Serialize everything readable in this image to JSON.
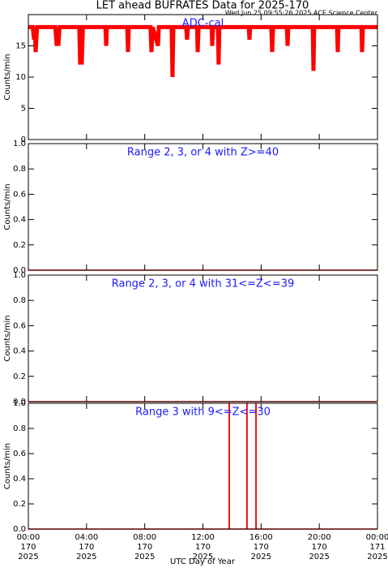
{
  "title": "LET ahead BUFRATES Data for 2025-170",
  "timestamp": "Wed Jun 25 09:55:26 2025 ACE Science Center",
  "xlabel": "UTC Day of Year",
  "chart_data": [
    {
      "type": "line",
      "title": "ADC-cal",
      "ylabel": "Counts/min",
      "color": "#ff0000",
      "xlim": [
        0,
        24
      ],
      "ylim": [
        0,
        20
      ],
      "yticks": [
        0,
        5,
        10,
        15
      ],
      "series": [
        {
          "color": "#ff0000",
          "x": [
            0,
            0.3,
            0.39,
            0.45,
            0.5,
            0.6,
            1.85,
            1.95,
            2.0,
            2.06,
            2.15,
            3.5,
            3.56,
            3.62,
            3.67,
            3.75,
            5.3,
            5.35,
            5.4,
            6.8,
            6.85,
            6.9,
            8.4,
            8.46,
            8.55,
            8.91,
            8.97,
            9.85,
            9.91,
            9.97,
            10.85,
            10.91,
            10.97,
            11.6,
            11.64,
            11.7,
            12.6,
            12.64,
            12.7,
            13.03,
            13.08,
            13.13,
            15.15,
            15.2,
            15.25,
            16.7,
            16.76,
            16.82,
            17.77,
            17.82,
            17.87,
            19.55,
            19.6,
            19.65,
            21.22,
            21.27,
            21.32,
            22.9,
            22.94,
            23.0,
            24
          ],
          "values": [
            18,
            18,
            16,
            18,
            14,
            18,
            18,
            15,
            18,
            15,
            18,
            18,
            12,
            18,
            12,
            18,
            18,
            15,
            18,
            18,
            14,
            18,
            18,
            14,
            18,
            15,
            18,
            18,
            10,
            18,
            18,
            16,
            18,
            18,
            14,
            18,
            18,
            15,
            18,
            18,
            12,
            18,
            18,
            16,
            18,
            18,
            14,
            18,
            18,
            15,
            18,
            18,
            11,
            18,
            18,
            14,
            18,
            18,
            14,
            18,
            18
          ]
        }
      ]
    },
    {
      "type": "line",
      "title": "Range 2, 3, or 4 with Z>=40",
      "ylabel": "Counts/min",
      "xlim": [
        0,
        24
      ],
      "ylim": [
        0,
        1
      ],
      "yticks": [
        {
          "value": 0,
          "label": "0.0"
        },
        {
          "value": 0.2,
          "label": "0.2"
        },
        {
          "value": 0.4,
          "label": "0.4"
        },
        {
          "value": 0.6,
          "label": "0.6"
        },
        {
          "value": 0.8,
          "label": "0.8"
        },
        {
          "value": 1,
          "label": "1.0"
        }
      ],
      "series": [
        {
          "color": "#ff0000",
          "x": [
            0,
            24
          ],
          "values": [
            0,
            0
          ]
        }
      ]
    },
    {
      "type": "line",
      "title": "Range 2, 3, or 4 with 31<=Z<=39",
      "ylabel": "Counts/min",
      "xlim": [
        0,
        24
      ],
      "ylim": [
        0,
        1
      ],
      "yticks": [
        {
          "value": 0,
          "label": "0.0"
        },
        {
          "value": 0.2,
          "label": "0.2"
        },
        {
          "value": 0.4,
          "label": "0.4"
        },
        {
          "value": 0.6,
          "label": "0.6"
        },
        {
          "value": 0.8,
          "label": "0.8"
        },
        {
          "value": 1,
          "label": "1.0"
        }
      ],
      "series": [
        {
          "color": "#ff0000",
          "x": [
            0,
            24
          ],
          "values": [
            0,
            0
          ]
        }
      ]
    },
    {
      "type": "line",
      "title": "Range 3 with 9<=Z<=30",
      "ylabel": "Counts/min",
      "xlim": [
        0,
        24
      ],
      "ylim": [
        0,
        1
      ],
      "yticks": [
        {
          "value": 0,
          "label": "0.0"
        },
        {
          "value": 0.2,
          "label": "0.2"
        },
        {
          "value": 0.4,
          "label": "0.4"
        },
        {
          "value": 0.6,
          "label": "0.6"
        },
        {
          "value": 0.8,
          "label": "0.8"
        },
        {
          "value": 1,
          "label": "1.0"
        }
      ],
      "xticks": [
        {
          "value": 0,
          "label": [
            "00:00",
            "170",
            "2025"
          ]
        },
        {
          "value": 4,
          "label": [
            "04:00",
            "170",
            "2025"
          ]
        },
        {
          "value": 8,
          "label": [
            "08:00",
            "170",
            "2025"
          ]
        },
        {
          "value": 12,
          "label": [
            "12:00",
            "170",
            "2025"
          ]
        },
        {
          "value": 16,
          "label": [
            "16:00",
            "170",
            "2025"
          ]
        },
        {
          "value": 20,
          "label": [
            "20:00",
            "170",
            "2025"
          ]
        },
        {
          "value": 24,
          "label": [
            "00:00",
            "171",
            "2025"
          ]
        }
      ],
      "series": [
        {
          "color": "#ff0000",
          "x": [
            0,
            13.8,
            13.8,
            13.82,
            13.82,
            15.02,
            15.02,
            15.04,
            15.04,
            15.64,
            15.64,
            15.66,
            15.66,
            24
          ],
          "values": [
            0,
            0,
            1,
            1,
            0,
            0,
            1,
            1,
            0,
            0,
            1,
            1,
            0,
            0
          ]
        }
      ]
    }
  ]
}
